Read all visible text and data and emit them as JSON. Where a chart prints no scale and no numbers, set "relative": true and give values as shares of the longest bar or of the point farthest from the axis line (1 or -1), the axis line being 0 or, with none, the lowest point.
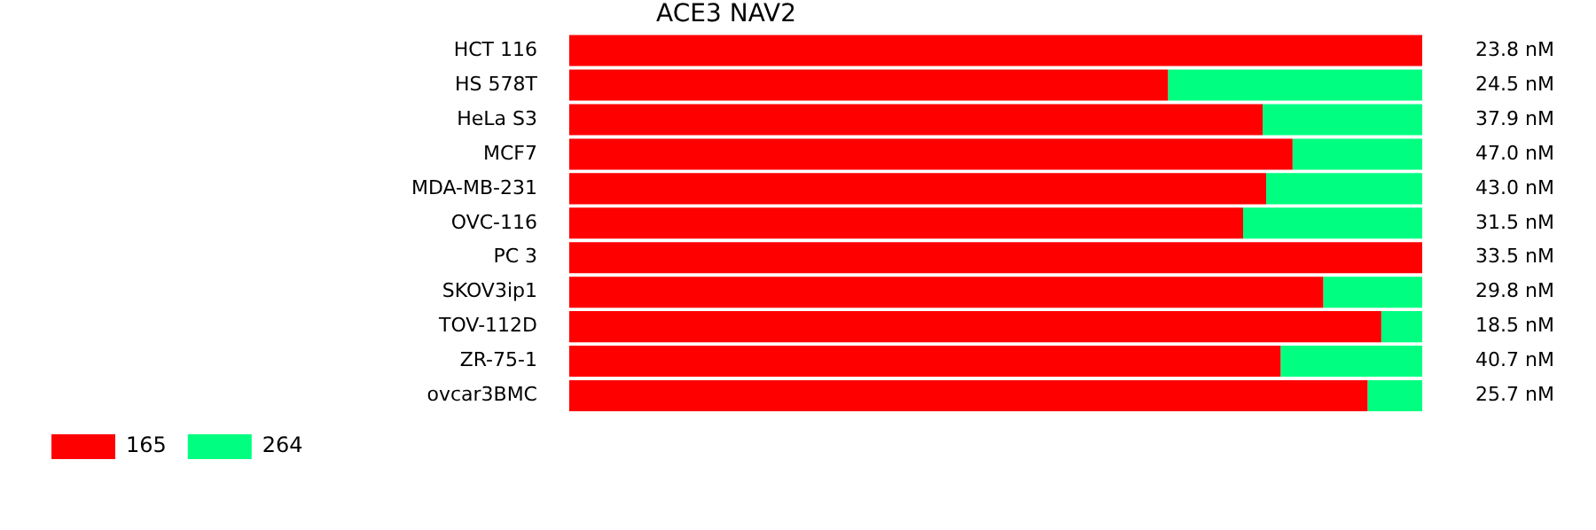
{
  "chart_data": {
    "type": "bar",
    "title": "ACE3 NAV2",
    "orientation": "horizontal",
    "stacked": true,
    "relative": true,
    "legend": "bottom left",
    "categories": [
      "HCT 116",
      "HS 578T",
      "HeLa S3",
      "MCF7",
      "MDA-MB-231",
      "OVC-116",
      "PC 3",
      "SKOV3ip1",
      "TOV-112D",
      "ZR-75-1",
      "ovcar3BMC"
    ],
    "series": [
      {
        "name": "165",
        "color": "#ff0000",
        "values": [
          1,
          0.702,
          0.813,
          0.848,
          0.817,
          0.79,
          1,
          0.884,
          0.952,
          0.834,
          0.936
        ]
      },
      {
        "name": "264",
        "color": "#00ff80",
        "values": [
          0,
          0.298,
          0.187,
          0.152,
          0.183,
          0.21,
          0,
          0.116,
          0.048,
          0.166,
          0.064
        ]
      }
    ],
    "annotations": [
      "23.8 nM",
      "24.5 nM",
      "37.9 nM",
      "47.0 nM",
      "43.0 nM",
      "31.5 nM",
      "33.5 nM",
      "29.8 nM",
      "18.5 nM",
      "40.7 nM",
      "25.7 nM"
    ]
  }
}
